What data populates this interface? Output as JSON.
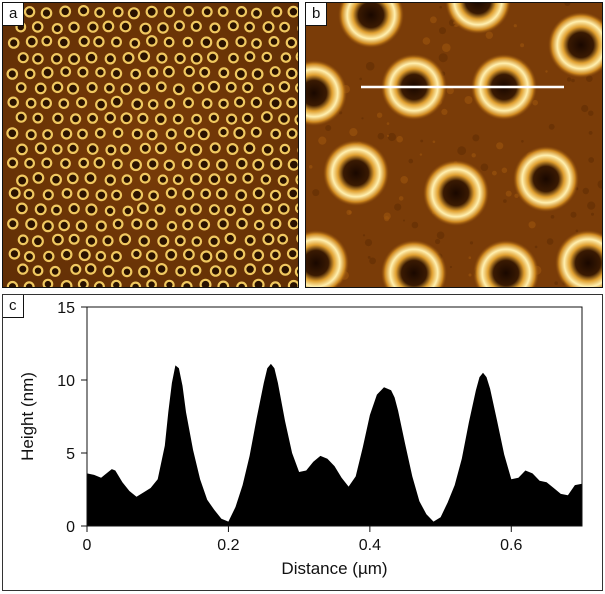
{
  "panels": {
    "a": {
      "label": "a"
    },
    "b": {
      "label": "b"
    },
    "c": {
      "label": "c"
    }
  },
  "colors": {
    "afm_background": "#7a3c08",
    "afm_ring": "#f0c860",
    "afm_ring_light": "#fff2b0",
    "afm_center": "#2a1000",
    "profile_line": "#ffffff",
    "profile_fill": "#000000"
  },
  "chart_data": {
    "type": "area",
    "title": "",
    "xlabel": "Distance (µm)",
    "ylabel": "Height (nm)",
    "xlim": [
      0,
      0.7
    ],
    "ylim": [
      0,
      15
    ],
    "xticks": [
      0,
      0.2,
      0.4,
      0.6
    ],
    "xtick_labels": [
      "0",
      "0.2",
      "0.4",
      "0.6"
    ],
    "yticks": [
      0,
      5,
      10,
      15
    ],
    "ytick_labels": [
      "0",
      "5",
      "10",
      "15"
    ],
    "series": [
      {
        "name": "height profile",
        "x": [
          0,
          0.01,
          0.02,
          0.03,
          0.035,
          0.04,
          0.05,
          0.06,
          0.07,
          0.08,
          0.09,
          0.1,
          0.11,
          0.115,
          0.12,
          0.125,
          0.13,
          0.135,
          0.14,
          0.15,
          0.16,
          0.17,
          0.18,
          0.19,
          0.2,
          0.21,
          0.22,
          0.23,
          0.24,
          0.25,
          0.255,
          0.26,
          0.265,
          0.27,
          0.28,
          0.29,
          0.3,
          0.31,
          0.32,
          0.33,
          0.34,
          0.35,
          0.36,
          0.37,
          0.38,
          0.39,
          0.4,
          0.41,
          0.42,
          0.43,
          0.435,
          0.44,
          0.45,
          0.46,
          0.47,
          0.48,
          0.49,
          0.5,
          0.51,
          0.52,
          0.53,
          0.54,
          0.55,
          0.555,
          0.56,
          0.565,
          0.57,
          0.58,
          0.59,
          0.6,
          0.61,
          0.62,
          0.63,
          0.64,
          0.65,
          0.66,
          0.67,
          0.68,
          0.69,
          0.7
        ],
        "y": [
          3.6,
          3.5,
          3.3,
          3.7,
          3.9,
          3.8,
          3.0,
          2.4,
          2.0,
          2.3,
          2.6,
          3.2,
          5.5,
          7.8,
          9.8,
          11.0,
          10.8,
          9.6,
          7.8,
          5.2,
          3.2,
          1.8,
          1.1,
          0.5,
          0.3,
          1.3,
          2.8,
          4.8,
          7.4,
          9.8,
          10.8,
          11.1,
          10.8,
          9.8,
          7.2,
          5.0,
          3.7,
          3.8,
          4.4,
          4.8,
          4.6,
          4.1,
          3.3,
          2.7,
          3.4,
          5.4,
          7.6,
          9.0,
          9.5,
          9.3,
          8.8,
          7.9,
          5.6,
          3.4,
          1.7,
          0.8,
          0.3,
          0.6,
          1.6,
          2.8,
          4.6,
          7.1,
          9.3,
          10.2,
          10.5,
          10.2,
          9.4,
          7.2,
          4.9,
          3.2,
          3.3,
          3.8,
          3.6,
          3.1,
          3.0,
          2.6,
          2.2,
          2.1,
          2.8,
          2.9
        ]
      }
    ]
  }
}
